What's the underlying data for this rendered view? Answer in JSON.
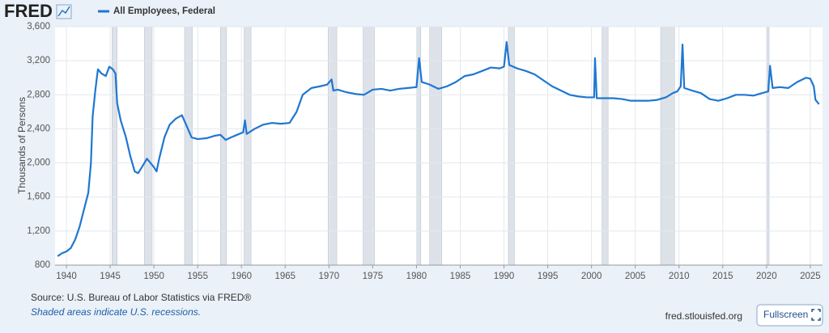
{
  "chart_data": {
    "type": "line",
    "logo": "FRED",
    "y_label": "Thousands of Persons",
    "source": "Source: U.S. Bureau of Labor Statistics via FRED®",
    "note": "Shaded areas indicate U.S. recessions.",
    "site": "fred.stlouisfed.org",
    "button": "Fullscreen",
    "xlim": [
      1938.7,
      2026.4
    ],
    "ylim": [
      800,
      3600
    ],
    "xticks": [
      1940,
      1945,
      1950,
      1955,
      1960,
      1965,
      1970,
      1975,
      1980,
      1985,
      1990,
      1995,
      2000,
      2005,
      2010,
      2015,
      2020,
      2025
    ],
    "yticks": [
      800,
      {
        "value": 1200,
        "label": "1,200"
      },
      {
        "value": 1600,
        "label": "1,600"
      },
      {
        "value": 2000,
        "label": "2,000"
      },
      {
        "value": 2400,
        "label": "2,400"
      },
      {
        "value": 2800,
        "label": "2,800"
      },
      {
        "value": 3200,
        "label": "3,200"
      },
      {
        "value": 3600,
        "label": "3,600"
      }
    ],
    "grid": true,
    "recession_color": "#dde2e9",
    "recessions": [
      [
        1945.2,
        1945.8
      ],
      [
        1948.9,
        1949.8
      ],
      [
        1953.5,
        1954.4
      ],
      [
        1957.6,
        1958.3
      ],
      [
        1960.3,
        1961.1
      ],
      [
        1969.9,
        1970.9
      ],
      [
        1973.9,
        1975.2
      ],
      [
        1980.0,
        1980.5
      ],
      [
        1981.5,
        1982.9
      ],
      [
        1990.5,
        1991.2
      ],
      [
        2001.2,
        2001.9
      ],
      [
        2007.9,
        2009.5
      ],
      [
        2020.1,
        2020.3
      ]
    ],
    "x": [
      1939.0,
      1939.5,
      1940.0,
      1940.5,
      1941.0,
      1941.5,
      1942.0,
      1942.5,
      1942.8,
      1943.0,
      1943.3,
      1943.6,
      1944.0,
      1944.5,
      1944.9,
      1945.3,
      1945.6,
      1945.8,
      1946.2,
      1946.8,
      1947.3,
      1947.8,
      1948.2,
      1948.8,
      1949.2,
      1949.6,
      1950.0,
      1950.3,
      1950.6,
      1951.2,
      1951.8,
      1952.5,
      1953.2,
      1953.8,
      1954.3,
      1955.0,
      1956.0,
      1957.0,
      1957.6,
      1958.2,
      1958.8,
      1959.5,
      1960.2,
      1960.4,
      1960.6,
      1961.5,
      1962.5,
      1963.5,
      1964.5,
      1965.5,
      1966.3,
      1967.0,
      1968.0,
      1969.0,
      1969.8,
      1970.3,
      1970.5,
      1971.0,
      1972.0,
      1973.0,
      1974.0,
      1975.0,
      1976.0,
      1977.0,
      1978.0,
      1979.0,
      1980.0,
      1980.3,
      1980.6,
      1981.5,
      1982.5,
      1983.5,
      1984.5,
      1985.5,
      1986.5,
      1987.5,
      1988.5,
      1989.5,
      1990.0,
      1990.3,
      1990.6,
      1991.5,
      1992.5,
      1993.5,
      1994.5,
      1995.5,
      1996.5,
      1997.5,
      1998.5,
      1999.5,
      2000.3,
      2000.4,
      2000.6,
      2001.5,
      2002.5,
      2003.5,
      2004.5,
      2005.5,
      2006.5,
      2007.5,
      2008.5,
      2009.3,
      2009.8,
      2010.2,
      2010.4,
      2010.6,
      2011.5,
      2012.5,
      2013.5,
      2014.5,
      2015.5,
      2016.5,
      2017.5,
      2018.5,
      2019.5,
      2020.2,
      2020.4,
      2020.7,
      2021.5,
      2022.5,
      2023.5,
      2024.5,
      2025.0,
      2025.4,
      2025.6,
      2026.0
    ],
    "series": [
      {
        "name": "All Employees, Federal",
        "color": "#1f77d0",
        "values": [
          905,
          940,
          960,
          1000,
          1100,
          1250,
          1450,
          1650,
          2000,
          2550,
          2850,
          3100,
          3050,
          3020,
          3130,
          3100,
          3050,
          2700,
          2500,
          2300,
          2080,
          1900,
          1880,
          1980,
          2050,
          2000,
          1950,
          1900,
          2050,
          2300,
          2450,
          2520,
          2560,
          2420,
          2300,
          2280,
          2290,
          2320,
          2330,
          2270,
          2300,
          2330,
          2360,
          2500,
          2340,
          2400,
          2450,
          2470,
          2460,
          2470,
          2600,
          2800,
          2880,
          2900,
          2920,
          2980,
          2850,
          2860,
          2830,
          2810,
          2800,
          2860,
          2870,
          2850,
          2870,
          2880,
          2890,
          3230,
          2950,
          2920,
          2870,
          2900,
          2950,
          3020,
          3040,
          3080,
          3120,
          3110,
          3130,
          3420,
          3150,
          3110,
          3080,
          3040,
          2970,
          2900,
          2850,
          2800,
          2780,
          2770,
          2770,
          3230,
          2760,
          2760,
          2760,
          2750,
          2730,
          2730,
          2730,
          2740,
          2770,
          2820,
          2840,
          2900,
          3390,
          2880,
          2850,
          2820,
          2750,
          2730,
          2760,
          2800,
          2800,
          2790,
          2820,
          2840,
          3140,
          2880,
          2890,
          2880,
          2950,
          3000,
          2990,
          2900,
          2740,
          2690
        ]
      }
    ]
  }
}
